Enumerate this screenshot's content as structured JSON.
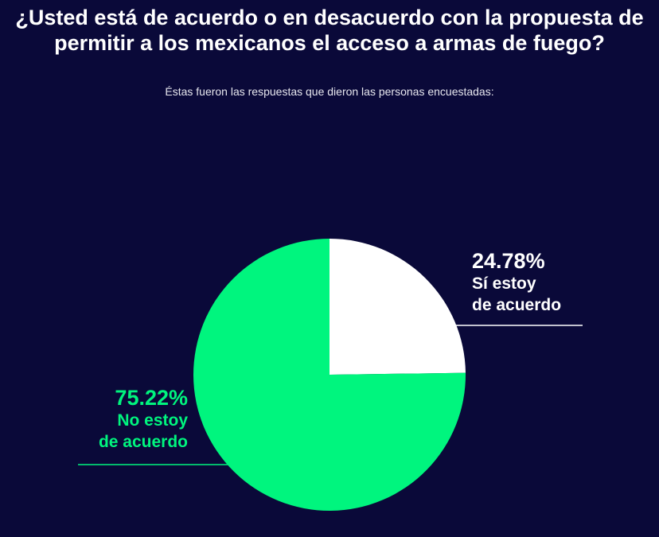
{
  "chart_data": {
    "type": "pie",
    "title": "¿Usted está de acuerdo o en desacuerdo con la propuesta de permitir a los mexicanos el acceso a armas de fuego?",
    "subtitle": "Éstas fueron las respuestas que dieron las personas encuestadas:",
    "slices": [
      {
        "label_line1": "Sí estoy",
        "label_line2": "de acuerdo",
        "value": 24.78,
        "value_label": "24.78%",
        "color": "#ffffff"
      },
      {
        "label_line1": "No estoy",
        "label_line2": "de acuerdo",
        "value": 75.22,
        "value_label": "75.22%",
        "color": "#00f57e"
      }
    ],
    "start_angle": "12 o'clock, clockwise"
  }
}
